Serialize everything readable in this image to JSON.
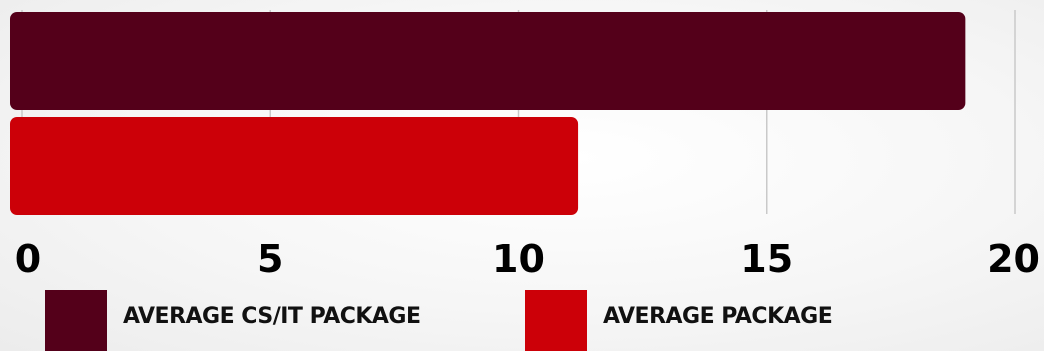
{
  "chart_data": {
    "type": "bar",
    "orientation": "horizontal",
    "x_ticks": [
      "0",
      "5",
      "10",
      "15",
      "20"
    ],
    "xlim": [
      0,
      20
    ],
    "grid": true,
    "legend_position": "bottom",
    "series": [
      {
        "name": "AVERAGE CS/IT PACKAGE",
        "value": 19,
        "color": "#54001a"
      },
      {
        "name": "AVERAGE PACKAGE",
        "value": 11.2,
        "color": "#cc0008"
      }
    ]
  }
}
